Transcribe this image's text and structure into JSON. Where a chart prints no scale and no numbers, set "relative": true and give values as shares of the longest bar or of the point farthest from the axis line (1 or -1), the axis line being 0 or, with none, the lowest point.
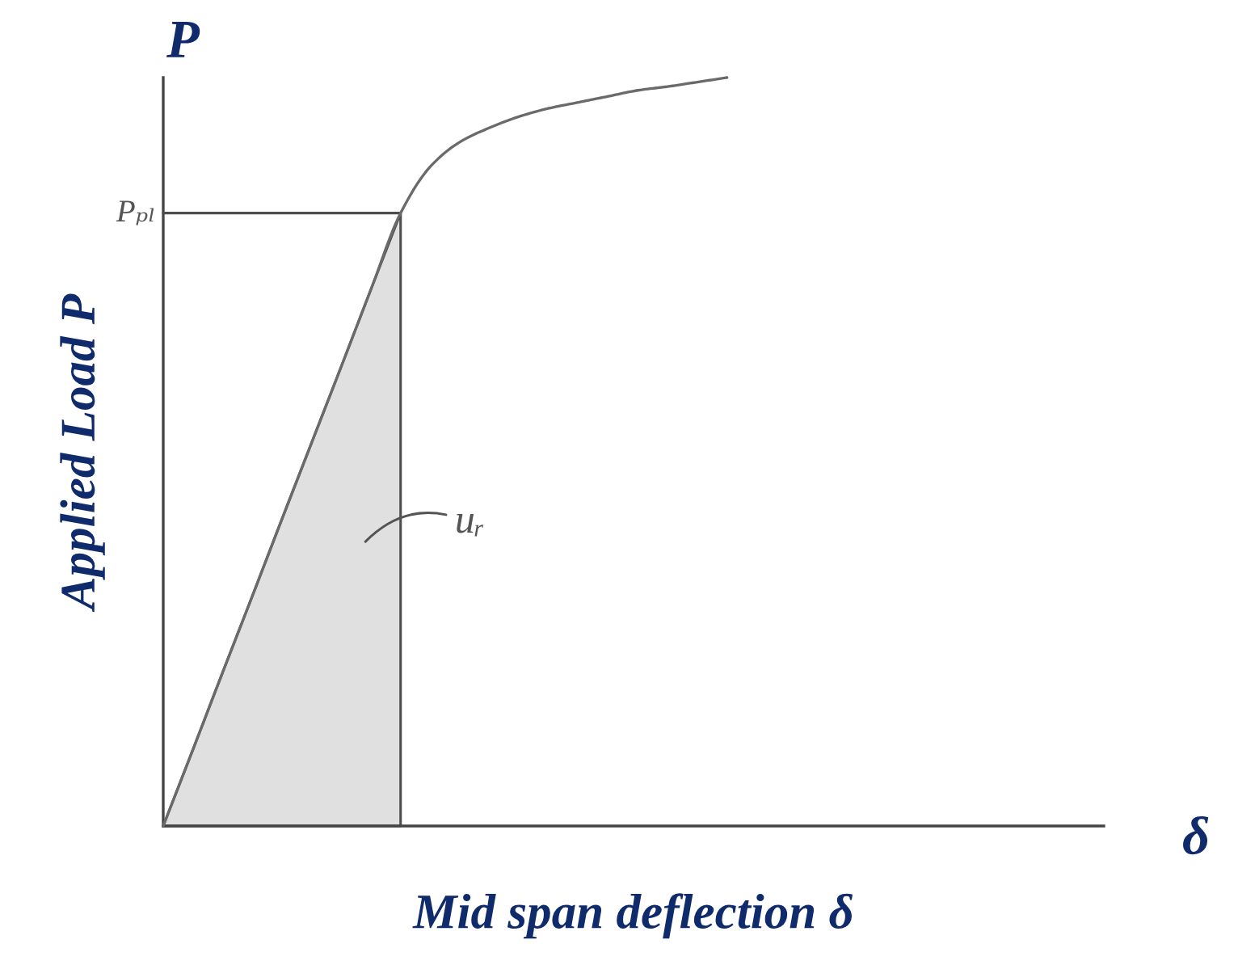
{
  "chart_data": {
    "type": "line",
    "relative": true,
    "tick_labels": false,
    "xlabel": "Mid span deflection δ",
    "ylabel": "Applied Load P",
    "categories": [
      null,
      null,
      null,
      null,
      null,
      null,
      null,
      null,
      null,
      null,
      null,
      null,
      null,
      null,
      null,
      null,
      null,
      null,
      null,
      null,
      null,
      null,
      null,
      null,
      null,
      null,
      null,
      null,
      null,
      null,
      null,
      null
    ],
    "series": [
      {
        "type": "area",
        "color": "#e0e0e0",
        "values": [
          0,
          0.102,
          0.205,
          0.307,
          0.41,
          0.512,
          0.614,
          0.717,
          0.819,
          null,
          null,
          null,
          null,
          null,
          null,
          null,
          null,
          null,
          null,
          null,
          null,
          null,
          null,
          null,
          null,
          null,
          null,
          null,
          null,
          null,
          null,
          null
        ]
      },
      {
        "color": "#4d4d4d",
        "values": [
          0.819,
          0.819,
          0.819,
          0.819,
          0.819,
          0.819,
          0.819,
          0.819,
          0.819,
          null,
          null,
          null,
          null,
          null,
          null,
          null,
          null,
          null,
          null,
          null,
          null,
          null,
          null,
          null,
          null,
          null,
          null,
          null,
          null,
          null,
          null,
          null
        ]
      },
      {
        "color": "#6a6a6a",
        "values": [
          0,
          0.102,
          0.205,
          0.307,
          0.41,
          0.512,
          0.614,
          0.717,
          0.819,
          0.881,
          0.914,
          0.933,
          0.948,
          0.959,
          0.967,
          0.975,
          0.983,
          0.988,
          0.994,
          1,
          null,
          null,
          null,
          null,
          null,
          null,
          null,
          null,
          null,
          null,
          null,
          null
        ]
      }
    ],
    "annotations": [
      "Pₚₗ",
      "P",
      "δ",
      "uᵣ"
    ]
  }
}
